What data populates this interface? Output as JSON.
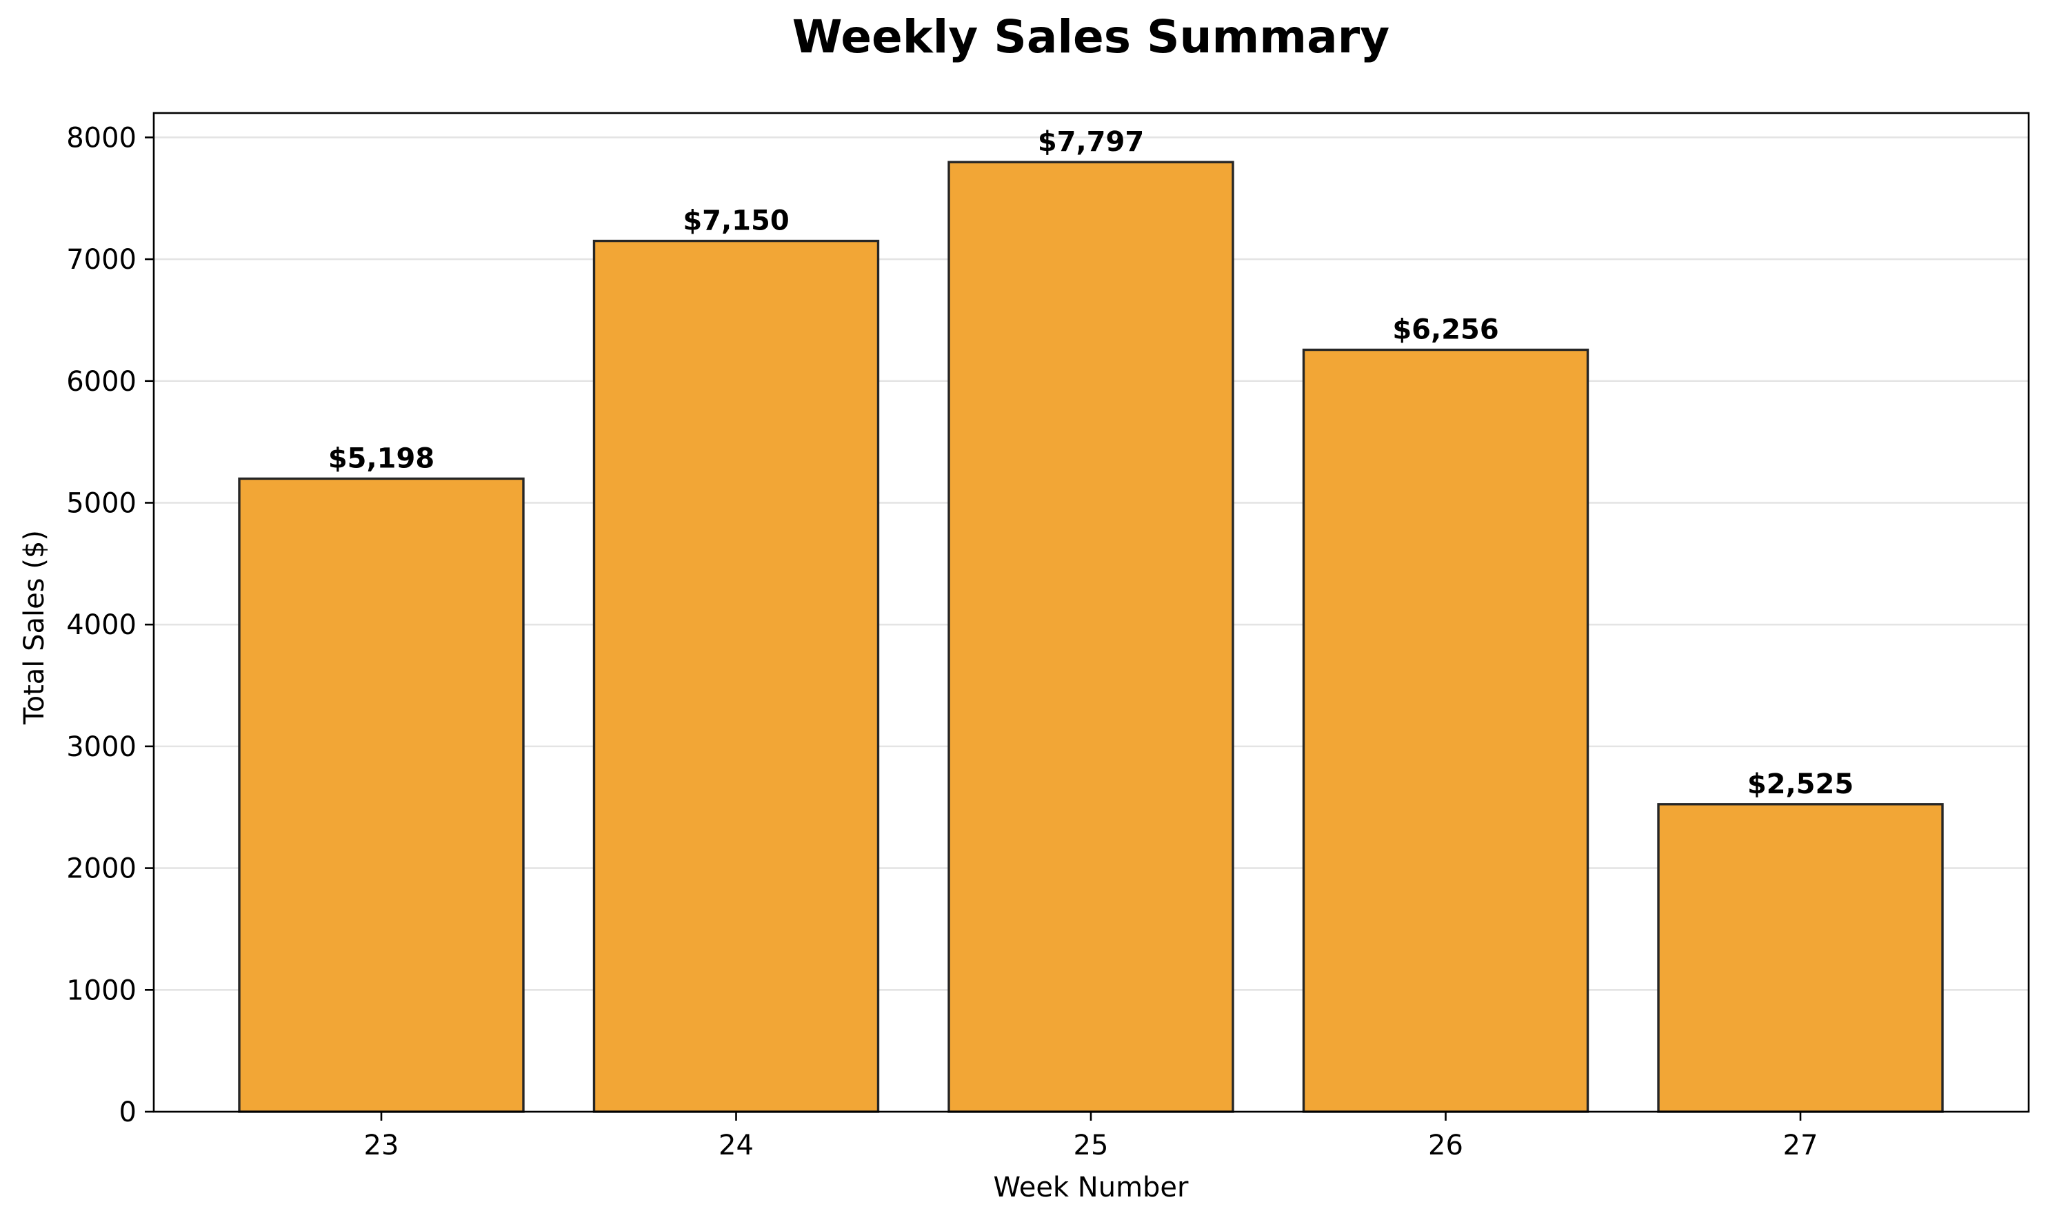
{
  "chart_data": {
    "type": "bar",
    "title": "Weekly Sales Summary",
    "xlabel": "Week Number",
    "ylabel": "Total Sales ($)",
    "categories": [
      "23",
      "24",
      "25",
      "26",
      "27"
    ],
    "values": [
      5198,
      7150,
      7797,
      6256,
      2525
    ],
    "data_labels": [
      "$5,198",
      "$7,150",
      "$7,797",
      "$6,256",
      "$2,525"
    ],
    "ylim": [
      0,
      8200
    ],
    "yticks": [
      0,
      1000,
      2000,
      3000,
      4000,
      5000,
      6000,
      7000,
      8000
    ],
    "ytick_labels": [
      "0",
      "1000",
      "2000",
      "3000",
      "4000",
      "5000",
      "6000",
      "7000",
      "8000"
    ],
    "grid": "horizontal",
    "legend": "none",
    "colors": {
      "bar_fill": "#f2a636",
      "bar_edge": "#262626"
    }
  }
}
